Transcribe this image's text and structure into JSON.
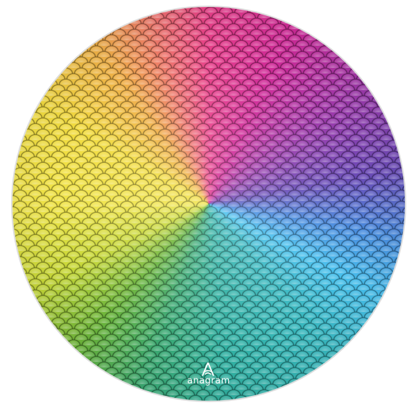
{
  "image": {
    "subject": "sequin-foil-balloon",
    "colors": [
      "#e8408a",
      "#9a3aac",
      "#4a8ee0",
      "#30b0a0",
      "#6ab43a",
      "#f0e448",
      "#f0b048"
    ]
  },
  "logo": {
    "text": "anagram"
  }
}
